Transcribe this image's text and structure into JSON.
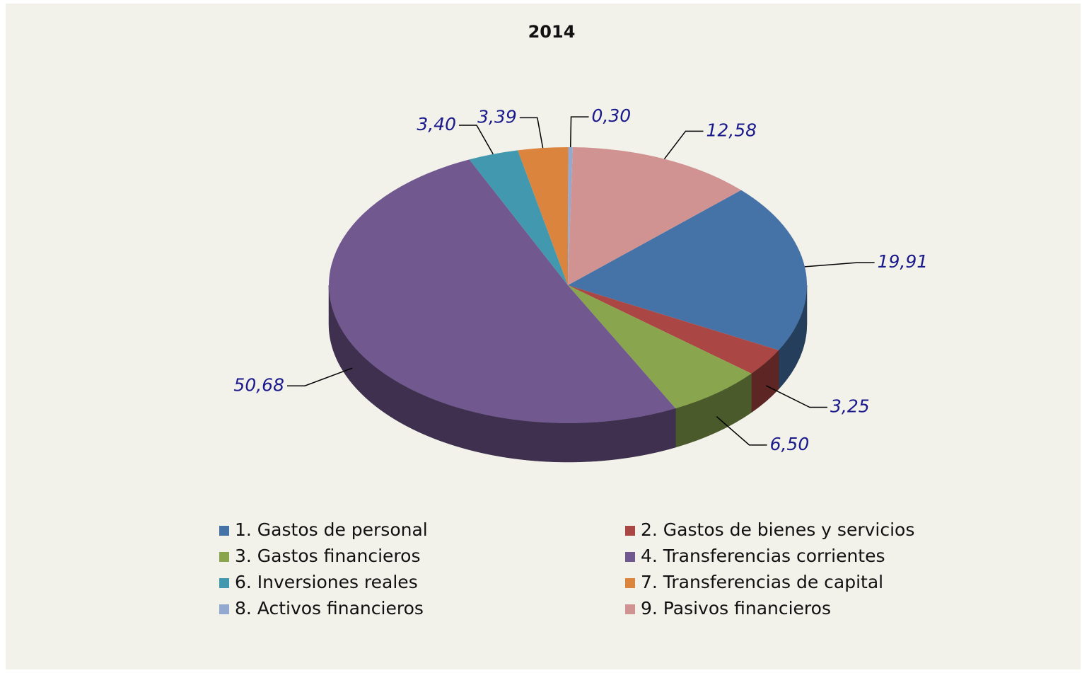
{
  "chart_data": {
    "type": "pie",
    "title": "2014",
    "categories": [
      "1. Gastos de personal",
      "2. Gastos de bienes y servicios",
      "3. Gastos financieros",
      "4. Transferencias corrientes",
      "6. Inversiones reales",
      "7. Transferencias de capital",
      "8. Activos financieros",
      "9. Pasivos financieros"
    ],
    "values": [
      19.91,
      3.25,
      6.5,
      50.68,
      3.4,
      3.39,
      0.3,
      12.58
    ],
    "value_labels": [
      "19,91",
      "3,25",
      "6,50",
      "50,68",
      "3,40",
      "3,39",
      "0,30",
      "12,58"
    ],
    "colors": [
      "#4572a7",
      "#aa4643",
      "#89a54e",
      "#71588f",
      "#4198af",
      "#db843d",
      "#93a9cf",
      "#d19392"
    ],
    "legend": "bottom"
  }
}
